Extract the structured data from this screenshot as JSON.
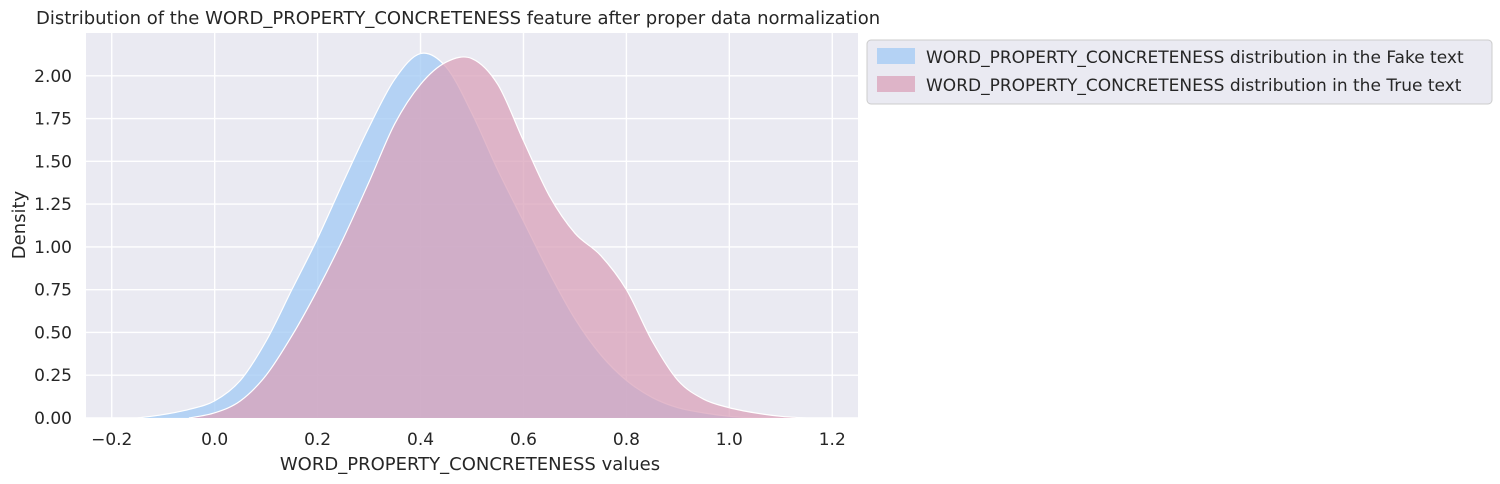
{
  "chart_data": {
    "type": "area",
    "title": "Distribution of the WORD_PROPERTY_CONCRETENESS feature after proper data normalization",
    "xlabel": "WORD_PROPERTY_CONCRETENESS values",
    "ylabel": "Density",
    "xlim": [
      -0.25,
      1.25
    ],
    "ylim": [
      0,
      2.25
    ],
    "xticks": [
      -0.2,
      0.0,
      0.2,
      0.4,
      0.6,
      0.8,
      1.0,
      1.2
    ],
    "xtick_labels": [
      "−0.2",
      "0.0",
      "0.2",
      "0.4",
      "0.6",
      "0.8",
      "1.0",
      "1.2"
    ],
    "yticks": [
      0,
      0.25,
      0.5,
      0.75,
      1.0,
      1.25,
      1.5,
      1.75,
      2.0
    ],
    "ytick_labels": [
      "0.00",
      "0.25",
      "0.50",
      "0.75",
      "1.00",
      "1.25",
      "1.50",
      "1.75",
      "2.00"
    ],
    "grid": true,
    "legend_position": "outside-upper-right",
    "background_color": "#eaeaf2",
    "series": [
      {
        "name": "WORD_PROPERTY_CONCRETENESS distribution in the Fake text",
        "color": "#a1c9f4",
        "x": [
          -0.15,
          -0.1,
          -0.05,
          0.0,
          0.05,
          0.1,
          0.15,
          0.2,
          0.25,
          0.3,
          0.35,
          0.4,
          0.45,
          0.5,
          0.55,
          0.6,
          0.65,
          0.7,
          0.75,
          0.8,
          0.85,
          0.9,
          0.95,
          1.0,
          1.05
        ],
        "y": [
          0.0,
          0.02,
          0.05,
          0.1,
          0.22,
          0.45,
          0.75,
          1.05,
          1.38,
          1.7,
          1.98,
          2.13,
          2.05,
          1.78,
          1.45,
          1.15,
          0.85,
          0.58,
          0.37,
          0.22,
          0.12,
          0.06,
          0.03,
          0.01,
          0.0
        ]
      },
      {
        "name": "WORD_PROPERTY_CONCRETENESS distribution in the True text",
        "color": "#d9a2b9",
        "x": [
          -0.05,
          0.0,
          0.05,
          0.1,
          0.15,
          0.2,
          0.25,
          0.3,
          0.35,
          0.4,
          0.45,
          0.5,
          0.55,
          0.6,
          0.65,
          0.7,
          0.75,
          0.8,
          0.85,
          0.9,
          0.95,
          1.0,
          1.05,
          1.1,
          1.15
        ],
        "y": [
          0.0,
          0.03,
          0.1,
          0.25,
          0.48,
          0.75,
          1.05,
          1.38,
          1.72,
          1.95,
          2.08,
          2.1,
          1.95,
          1.62,
          1.3,
          1.08,
          0.95,
          0.75,
          0.45,
          0.22,
          0.11,
          0.06,
          0.03,
          0.01,
          0.0
        ]
      }
    ]
  }
}
